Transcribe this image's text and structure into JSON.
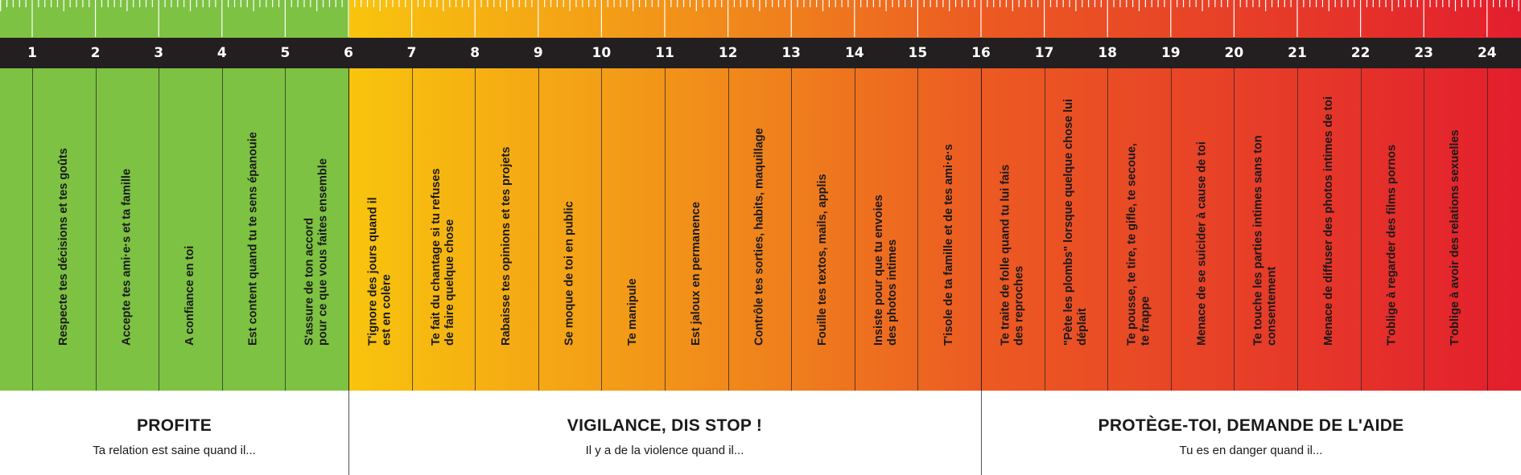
{
  "scale": {
    "numbers": [
      "1",
      "2",
      "3",
      "4",
      "5",
      "6",
      "7",
      "8",
      "9",
      "10",
      "11",
      "12",
      "13",
      "14",
      "15",
      "16",
      "17",
      "18",
      "19",
      "20",
      "21",
      "22",
      "23",
      "24"
    ]
  },
  "behaviors": [
    "Respecte tes décisions et tes goûts",
    "Accepte tes ami·e·s et ta famille",
    "A confiance en toi",
    "Est content quand tu te sens épanouie",
    "S'assure de ton accord\npour ce que vous faites ensemble",
    "T'ignore des jours quand il\nest en colère",
    "Te fait du chantage si tu refuses\nde faire quelque chose",
    "Rabaisse tes opinions et tes projets",
    "Se moque de toi en public",
    "Te manipule",
    "Est jaloux en permanence",
    "Contrôle tes sorties, habits, maquillage",
    "Fouille tes textos, mails, applis",
    "Insiste pour que tu envoies\ndes photos intimes",
    "T'isole de ta famille et de tes ami·e·s",
    "Te traite de folle quand tu lui fais\ndes reproches",
    "\"Pète les plombs\" lorsque quelque chose lui\ndéplait",
    "Te pousse, te tire, te gifle, te secoue,\nte frappe",
    "Menace de se suicider à cause de toi",
    "Te touche les parties intimes sans ton\nconsentement",
    "Menace de diffuser des photos intimes de toi",
    "T'oblige à regarder des films pornos",
    "T'oblige à avoir des relations sexuelles"
  ],
  "sections": [
    {
      "title": "PROFITE",
      "subtitle": "Ta relation est saine quand il..."
    },
    {
      "title": "VIGILANCE, DIS STOP !",
      "subtitle": "Il y a de la violence quand il..."
    },
    {
      "title": "PROTÈGE-TOI, DEMANDE DE L'AIDE",
      "subtitle": "Tu es en danger quand il..."
    }
  ],
  "colors": {
    "green": "#7dc242",
    "yellow": "#f8c40d",
    "orange": "#ef7c1d",
    "red": "#e31e2d",
    "bar": "#231f20"
  }
}
